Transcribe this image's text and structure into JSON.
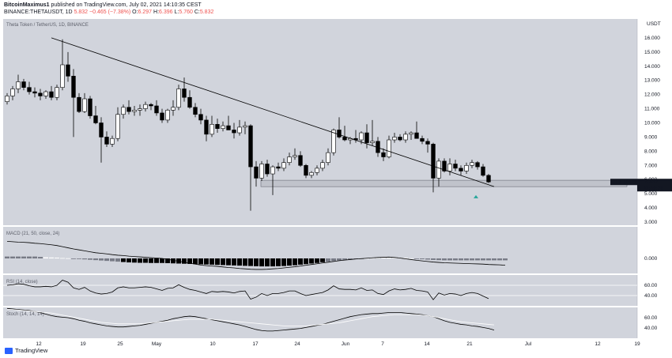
{
  "header": {
    "author": "BitcoinMaximus1",
    "published_text": "published on TradingView.com, July 02, 2021 14:10:35 CEST",
    "symbol_line": "BINANCE:THETAUSDT, 1D",
    "price": "5.832",
    "change": "−0.465 (−7.38%)",
    "open_label": "O:",
    "open": "6.297",
    "high_label": "H:",
    "high": "6.396",
    "low_label": "L:",
    "low": "5.760",
    "close_label": "C:",
    "close": "5.832"
  },
  "footer": {
    "brand": "TradingView"
  },
  "colors": {
    "plot_bg": "#d1d4dc",
    "pane_border": "#ffffff",
    "candle_up": "#ffffff",
    "candle_down": "#000000",
    "support_box": "#b2b5be",
    "marker": "#26a69a",
    "hist_light": "#ffffff",
    "hist_mid": "#787b86",
    "hist_dark": "#000000"
  },
  "chart_data": [
    {
      "type": "candlestick",
      "title": "Theta Token / TetherUS, 1D, BINANCE",
      "ylabel": "USDT",
      "ylim": [
        3.0,
        17.0
      ],
      "y_ticks": [
        "3.000",
        "4.000",
        "5.000",
        "6.000",
        "7.000",
        "8.000",
        "9.000",
        "10.000",
        "11.000",
        "12.000",
        "13.000",
        "14.000",
        "15.000",
        "16.000",
        "USDT"
      ],
      "x_ticks": [
        "12",
        "19",
        "25",
        "May",
        "10",
        "17",
        "24",
        "Jun",
        "7",
        "14",
        "21",
        "Jul",
        "12",
        "19"
      ],
      "last_price_label": "THETAUSDT",
      "last_price": "5.832",
      "countdown": "11:49:26",
      "candles": [
        {
          "o": 11.5,
          "h": 12.1,
          "l": 11.3,
          "c": 11.9
        },
        {
          "o": 11.9,
          "h": 12.6,
          "l": 11.6,
          "c": 12.4
        },
        {
          "o": 12.4,
          "h": 13.4,
          "l": 12.1,
          "c": 12.9
        },
        {
          "o": 12.9,
          "h": 13.1,
          "l": 12.3,
          "c": 12.5
        },
        {
          "o": 12.5,
          "h": 12.9,
          "l": 12.0,
          "c": 12.2
        },
        {
          "o": 12.2,
          "h": 12.5,
          "l": 11.8,
          "c": 12.1
        },
        {
          "o": 12.1,
          "h": 12.4,
          "l": 11.6,
          "c": 11.9
        },
        {
          "o": 11.9,
          "h": 12.3,
          "l": 11.7,
          "c": 12.2
        },
        {
          "o": 12.2,
          "h": 12.6,
          "l": 11.6,
          "c": 11.8
        },
        {
          "o": 11.8,
          "h": 12.7,
          "l": 11.6,
          "c": 12.5
        },
        {
          "o": 12.5,
          "h": 15.9,
          "l": 12.3,
          "c": 14.1
        },
        {
          "o": 14.1,
          "h": 15.0,
          "l": 12.9,
          "c": 13.3
        },
        {
          "o": 13.3,
          "h": 13.8,
          "l": 9.0,
          "c": 11.8
        },
        {
          "o": 11.8,
          "h": 12.1,
          "l": 10.7,
          "c": 10.8
        },
        {
          "o": 10.8,
          "h": 12.1,
          "l": 10.7,
          "c": 11.7
        },
        {
          "o": 11.7,
          "h": 11.9,
          "l": 10.3,
          "c": 10.5
        },
        {
          "o": 10.5,
          "h": 11.2,
          "l": 9.9,
          "c": 10.0
        },
        {
          "o": 10.0,
          "h": 10.4,
          "l": 7.2,
          "c": 9.0
        },
        {
          "o": 9.0,
          "h": 9.4,
          "l": 8.3,
          "c": 8.5
        },
        {
          "o": 8.5,
          "h": 9.1,
          "l": 8.3,
          "c": 8.9
        },
        {
          "o": 8.9,
          "h": 11.1,
          "l": 8.7,
          "c": 10.6
        },
        {
          "o": 10.6,
          "h": 11.3,
          "l": 10.3,
          "c": 11.1
        },
        {
          "o": 11.1,
          "h": 11.6,
          "l": 10.6,
          "c": 10.8
        },
        {
          "o": 10.8,
          "h": 11.2,
          "l": 10.5,
          "c": 10.9
        },
        {
          "o": 10.9,
          "h": 11.3,
          "l": 10.5,
          "c": 11.0
        },
        {
          "o": 11.0,
          "h": 11.5,
          "l": 10.8,
          "c": 11.3
        },
        {
          "o": 11.3,
          "h": 11.4,
          "l": 10.9,
          "c": 11.2
        },
        {
          "o": 11.2,
          "h": 11.6,
          "l": 10.5,
          "c": 10.7
        },
        {
          "o": 10.7,
          "h": 11.0,
          "l": 10.0,
          "c": 10.2
        },
        {
          "o": 10.2,
          "h": 11.0,
          "l": 10.0,
          "c": 10.9
        },
        {
          "o": 10.9,
          "h": 11.6,
          "l": 10.5,
          "c": 11.1
        },
        {
          "o": 11.1,
          "h": 12.7,
          "l": 10.9,
          "c": 12.4
        },
        {
          "o": 12.4,
          "h": 13.2,
          "l": 11.5,
          "c": 11.8
        },
        {
          "o": 11.8,
          "h": 12.3,
          "l": 11.0,
          "c": 11.1
        },
        {
          "o": 11.1,
          "h": 11.4,
          "l": 10.4,
          "c": 10.6
        },
        {
          "o": 10.6,
          "h": 11.0,
          "l": 9.9,
          "c": 10.2
        },
        {
          "o": 10.2,
          "h": 10.5,
          "l": 8.7,
          "c": 9.2
        },
        {
          "o": 9.2,
          "h": 10.5,
          "l": 9.0,
          "c": 9.9
        },
        {
          "o": 9.9,
          "h": 10.3,
          "l": 9.3,
          "c": 9.6
        },
        {
          "o": 9.6,
          "h": 10.1,
          "l": 9.4,
          "c": 9.8
        },
        {
          "o": 9.8,
          "h": 10.5,
          "l": 9.5,
          "c": 9.5
        },
        {
          "o": 9.5,
          "h": 10.0,
          "l": 8.9,
          "c": 9.3
        },
        {
          "o": 9.3,
          "h": 10.2,
          "l": 9.1,
          "c": 9.7
        },
        {
          "o": 9.7,
          "h": 10.1,
          "l": 9.2,
          "c": 9.8
        },
        {
          "o": 9.8,
          "h": 9.9,
          "l": 3.8,
          "c": 6.9
        },
        {
          "o": 6.9,
          "h": 7.3,
          "l": 5.5,
          "c": 6.1
        },
        {
          "o": 6.1,
          "h": 7.3,
          "l": 5.9,
          "c": 7.1
        },
        {
          "o": 7.1,
          "h": 7.4,
          "l": 6.2,
          "c": 6.4
        },
        {
          "o": 6.4,
          "h": 7.0,
          "l": 4.9,
          "c": 6.9
        },
        {
          "o": 6.9,
          "h": 7.2,
          "l": 6.6,
          "c": 6.8
        },
        {
          "o": 6.8,
          "h": 7.5,
          "l": 6.6,
          "c": 7.2
        },
        {
          "o": 7.2,
          "h": 7.9,
          "l": 7.0,
          "c": 7.6
        },
        {
          "o": 7.6,
          "h": 8.2,
          "l": 7.4,
          "c": 7.7
        },
        {
          "o": 7.7,
          "h": 8.0,
          "l": 6.9,
          "c": 7.0
        },
        {
          "o": 7.0,
          "h": 7.1,
          "l": 6.1,
          "c": 6.3
        },
        {
          "o": 6.3,
          "h": 6.6,
          "l": 6.1,
          "c": 6.5
        },
        {
          "o": 6.5,
          "h": 7.0,
          "l": 6.3,
          "c": 6.8
        },
        {
          "o": 6.8,
          "h": 7.4,
          "l": 6.6,
          "c": 7.2
        },
        {
          "o": 7.2,
          "h": 8.2,
          "l": 7.0,
          "c": 7.9
        },
        {
          "o": 7.9,
          "h": 9.6,
          "l": 7.7,
          "c": 9.5
        },
        {
          "o": 9.5,
          "h": 10.4,
          "l": 8.9,
          "c": 9.0
        },
        {
          "o": 9.0,
          "h": 9.8,
          "l": 8.7,
          "c": 8.8
        },
        {
          "o": 8.8,
          "h": 9.0,
          "l": 8.5,
          "c": 8.9
        },
        {
          "o": 8.9,
          "h": 9.5,
          "l": 8.6,
          "c": 8.8
        },
        {
          "o": 8.8,
          "h": 9.4,
          "l": 8.5,
          "c": 9.3
        },
        {
          "o": 9.3,
          "h": 9.9,
          "l": 8.2,
          "c": 8.6
        },
        {
          "o": 8.6,
          "h": 10.2,
          "l": 8.4,
          "c": 8.7
        },
        {
          "o": 8.7,
          "h": 9.0,
          "l": 7.6,
          "c": 7.9
        },
        {
          "o": 7.9,
          "h": 8.2,
          "l": 7.3,
          "c": 7.6
        },
        {
          "o": 7.6,
          "h": 9.1,
          "l": 7.5,
          "c": 8.8
        },
        {
          "o": 8.8,
          "h": 9.3,
          "l": 8.6,
          "c": 9.0
        },
        {
          "o": 9.0,
          "h": 9.2,
          "l": 8.7,
          "c": 8.8
        },
        {
          "o": 8.8,
          "h": 9.4,
          "l": 8.6,
          "c": 9.2
        },
        {
          "o": 9.2,
          "h": 9.4,
          "l": 8.8,
          "c": 9.3
        },
        {
          "o": 9.3,
          "h": 10.1,
          "l": 8.9,
          "c": 8.9
        },
        {
          "o": 8.9,
          "h": 9.1,
          "l": 8.5,
          "c": 8.7
        },
        {
          "o": 8.7,
          "h": 8.9,
          "l": 7.9,
          "c": 8.5
        },
        {
          "o": 8.5,
          "h": 8.6,
          "l": 5.1,
          "c": 6.1
        },
        {
          "o": 6.1,
          "h": 7.5,
          "l": 5.5,
          "c": 7.3
        },
        {
          "o": 7.3,
          "h": 7.5,
          "l": 6.5,
          "c": 6.6
        },
        {
          "o": 6.6,
          "h": 7.5,
          "l": 6.3,
          "c": 7.1
        },
        {
          "o": 7.1,
          "h": 7.4,
          "l": 6.6,
          "c": 6.8
        },
        {
          "o": 6.8,
          "h": 7.0,
          "l": 6.3,
          "c": 6.6
        },
        {
          "o": 6.6,
          "h": 7.2,
          "l": 6.4,
          "c": 7.0
        },
        {
          "o": 7.0,
          "h": 7.4,
          "l": 6.8,
          "c": 7.2
        },
        {
          "o": 7.2,
          "h": 7.3,
          "l": 6.7,
          "c": 6.9
        },
        {
          "o": 6.9,
          "h": 7.1,
          "l": 6.2,
          "c": 6.297
        },
        {
          "o": 6.297,
          "h": 6.396,
          "l": 5.76,
          "c": 5.832
        }
      ],
      "trendline": {
        "from": {
          "index": 8,
          "price": 16.0
        },
        "to": {
          "index": 88,
          "price": 5.5
        }
      },
      "support_zone": [
        5.5,
        5.95
      ]
    },
    {
      "type": "histogram",
      "title": "MACD (21, 50, close, 24)",
      "ylim": [
        -1.0,
        1.0
      ],
      "y_ticks": [
        "0.000"
      ],
      "macd_line": [
        0.9,
        0.88,
        0.86,
        0.85,
        0.83,
        0.8,
        0.78,
        0.75,
        0.72,
        0.68,
        0.62,
        0.56,
        0.5,
        0.45,
        0.4,
        0.35,
        0.3,
        0.27,
        0.24,
        0.2,
        0.17,
        0.15,
        0.12,
        0.1,
        0.08,
        0.06,
        0.04,
        0.02,
        0,
        -0.05,
        -0.1,
        -0.15,
        -0.2,
        -0.25,
        -0.3,
        -0.35,
        -0.38,
        -0.4,
        -0.42,
        -0.45,
        -0.48,
        -0.5,
        -0.53,
        -0.55,
        -0.57,
        -0.58,
        -0.58,
        -0.57,
        -0.55,
        -0.53,
        -0.5,
        -0.47,
        -0.44,
        -0.4,
        -0.36,
        -0.32,
        -0.28,
        -0.24,
        -0.2,
        -0.16,
        -0.12,
        -0.09,
        -0.06,
        -0.03,
        -0.01,
        0.01,
        0.03,
        0.05,
        0.06,
        0.07,
        0.05,
        0.02,
        -0.02,
        -0.06,
        -0.1,
        -0.13,
        -0.16,
        -0.19,
        -0.21,
        -0.23,
        -0.24,
        -0.25,
        -0.26,
        -0.27,
        -0.28,
        -0.29,
        -0.3,
        -0.32,
        -0.33,
        -0.34,
        -0.36
      ],
      "histogram": [
        0.1,
        0.1,
        0.1,
        0.1,
        0.1,
        0.1,
        0.08,
        0.06,
        0.05,
        0.04,
        0.02,
        0.01,
        0,
        -0.03,
        -0.05,
        -0.07,
        -0.09,
        -0.11,
        -0.13,
        -0.15,
        -0.17,
        -0.19,
        -0.21,
        -0.22,
        -0.23,
        -0.23,
        -0.24,
        -0.24,
        -0.24,
        -0.25,
        -0.26,
        -0.27,
        -0.28,
        -0.29,
        -0.3,
        -0.31,
        -0.32,
        -0.33,
        -0.34,
        -0.35,
        -0.36,
        -0.37,
        -0.38,
        -0.39,
        -0.4,
        -0.41,
        -0.42,
        -0.42,
        -0.42,
        -0.41,
        -0.4,
        -0.38,
        -0.36,
        -0.33,
        -0.3,
        -0.27,
        -0.24,
        -0.2,
        -0.17,
        -0.14,
        -0.11,
        -0.08,
        -0.05,
        -0.03,
        -0.01,
        0.01,
        0.02,
        0.03,
        0.04,
        0.05,
        0.05,
        0.04,
        0.03,
        0.01,
        -0.02,
        -0.04,
        -0.06,
        -0.08,
        -0.09,
        -0.1,
        -0.1,
        -0.1,
        -0.1,
        -0.1,
        -0.1,
        -0.1,
        -0.1,
        -0.1,
        -0.1,
        -0.1,
        -0.1
      ]
    },
    {
      "type": "line",
      "title": "RSI (14, close)",
      "ylim": [
        20,
        80
      ],
      "y_ticks": [
        "60.00",
        "40.00"
      ],
      "values": [
        60,
        61,
        63,
        62,
        59,
        57,
        57,
        58,
        57,
        60,
        70,
        66,
        55,
        52,
        56,
        49,
        45,
        43,
        44,
        47,
        55,
        57,
        55,
        55,
        56,
        57,
        56,
        53,
        50,
        54,
        55,
        61,
        56,
        52,
        50,
        47,
        44,
        48,
        47,
        48,
        47,
        45,
        48,
        49,
        33,
        37,
        44,
        40,
        44,
        44,
        46,
        49,
        49,
        44,
        40,
        42,
        44,
        46,
        51,
        59,
        53,
        52,
        52,
        51,
        55,
        50,
        51,
        44,
        42,
        49,
        53,
        51,
        52,
        54,
        50,
        49,
        47,
        32,
        45,
        41,
        44,
        43,
        40,
        44,
        46,
        44,
        39,
        34
      ]
    },
    {
      "type": "line",
      "title": "Stoch (14, 14, 14)",
      "ylim": [
        20,
        80
      ],
      "y_ticks": [
        "60.00",
        "40.00"
      ],
      "series": [
        {
          "values": [
            78,
            77,
            76,
            75,
            74,
            72,
            70,
            67,
            64,
            62,
            61,
            60,
            58,
            55,
            53,
            50,
            48,
            46,
            44,
            43,
            42,
            42,
            43,
            44,
            45,
            47,
            49,
            51,
            53,
            55,
            58,
            60,
            62,
            63,
            62,
            60,
            58,
            56,
            54,
            52,
            50,
            48,
            46,
            43,
            40,
            37,
            35,
            34,
            34,
            35,
            36,
            37,
            38,
            39,
            41,
            43,
            45,
            47,
            50,
            53,
            56,
            59,
            62,
            64,
            66,
            67,
            68,
            68,
            69,
            70,
            70,
            70,
            69,
            68,
            67,
            66,
            64,
            62,
            58,
            54,
            51,
            49,
            47,
            46,
            44,
            43,
            41,
            39,
            36
          ]
        },
        {
          "values": [
            76,
            76,
            75,
            74,
            73,
            72,
            71,
            70,
            69,
            67,
            65,
            63,
            61,
            59,
            57,
            55,
            53,
            51,
            50,
            49,
            48,
            48,
            48,
            48,
            48,
            49,
            50,
            51,
            52,
            53,
            54,
            55,
            56,
            57,
            57,
            57,
            57,
            57,
            56,
            55,
            54,
            53,
            52,
            51,
            50,
            49,
            48,
            47,
            46,
            45,
            44,
            44,
            44,
            44,
            44,
            45,
            46,
            47,
            48,
            49,
            50,
            52,
            54,
            56,
            58,
            60,
            62,
            63,
            64,
            65,
            66,
            66,
            66,
            66,
            66,
            65,
            64,
            62,
            60,
            58,
            56,
            54,
            52,
            51,
            50,
            49,
            48,
            47,
            46
          ]
        }
      ]
    }
  ]
}
